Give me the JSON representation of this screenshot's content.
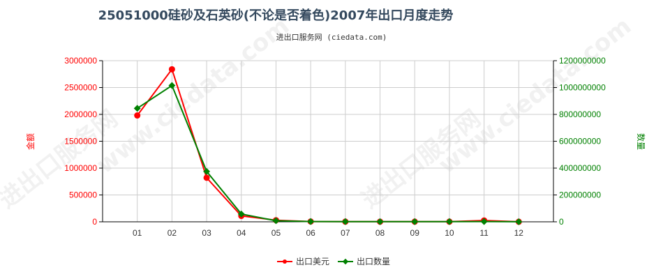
{
  "chart_data": {
    "type": "line",
    "title": "25051000硅砂及石英砂(不论是否着色)2007年出口月度走势",
    "subtitle": "进出口服务网 (ciedata.com)",
    "categories": [
      "01",
      "02",
      "03",
      "04",
      "05",
      "06",
      "07",
      "08",
      "09",
      "10",
      "11",
      "12"
    ],
    "y_left": {
      "label": "金额",
      "range": [
        0,
        3000000
      ],
      "ticks": [
        "0",
        "500000",
        "1000000",
        "1500000",
        "2000000",
        "2500000",
        "3000000"
      ],
      "color": "#ff0000"
    },
    "y_right": {
      "label": "数量",
      "range": [
        0,
        1200000000
      ],
      "ticks": [
        "0",
        "200000000",
        "400000000",
        "600000000",
        "800000000",
        "1000000000",
        "1200000000"
      ],
      "color": "#008000"
    },
    "series": [
      {
        "name": "出口美元",
        "axis": "left",
        "color": "#ff0000",
        "values": [
          1980000,
          2840000,
          820000,
          110000,
          30000,
          5000,
          3000,
          2000,
          3000,
          3000,
          25000,
          1000
        ]
      },
      {
        "name": "出口数量",
        "axis": "right",
        "color": "#008000",
        "values": [
          845000000,
          1015000000,
          375000000,
          58000000,
          8000000,
          2000000,
          1500000,
          1000000,
          1000000,
          1500000,
          2000000,
          500000
        ]
      }
    ],
    "grid": true,
    "legend": "bottom-center"
  }
}
